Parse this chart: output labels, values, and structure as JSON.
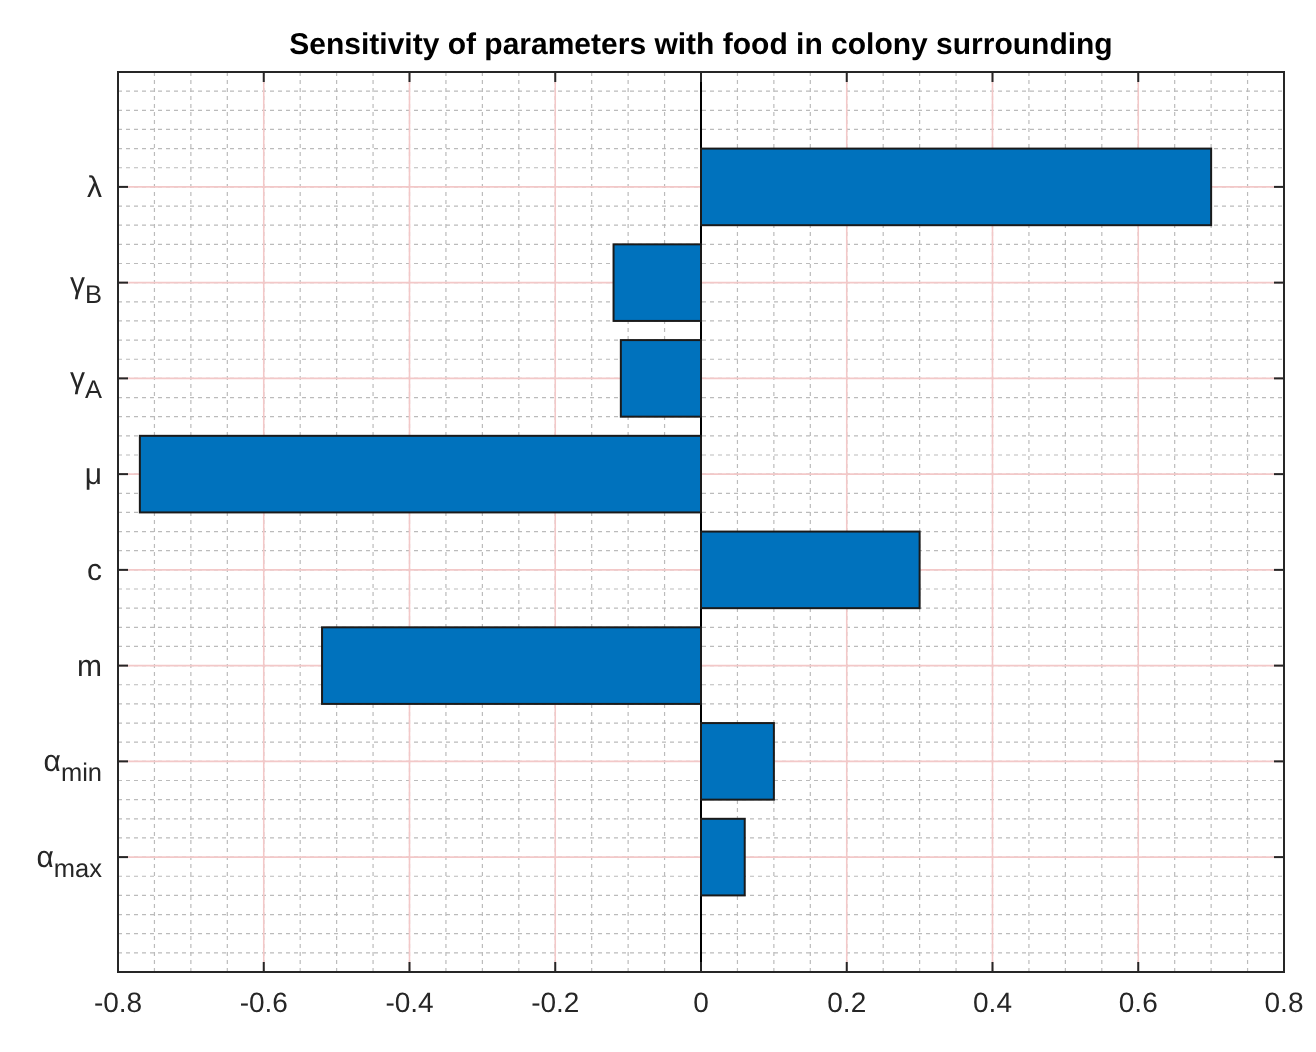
{
  "chart_data": {
    "type": "bar",
    "orientation": "horizontal",
    "title": "Sensitivity of parameters with food in colony surrounding",
    "categories": [
      "λ",
      "γ$_{B}$",
      "γ$_{A}$",
      "μ",
      "c",
      "m",
      "α$_{min}$",
      "α$_{max}$"
    ],
    "values": [
      0.7,
      -0.12,
      -0.11,
      -0.77,
      0.3,
      -0.52,
      0.1,
      0.06
    ],
    "color": "#0072bd",
    "xlim": [
      -0.8,
      0.8
    ],
    "xticks": [
      -0.8,
      -0.6,
      -0.4,
      -0.2,
      0,
      0.2,
      0.4,
      0.6,
      0.8
    ],
    "grid": true
  }
}
